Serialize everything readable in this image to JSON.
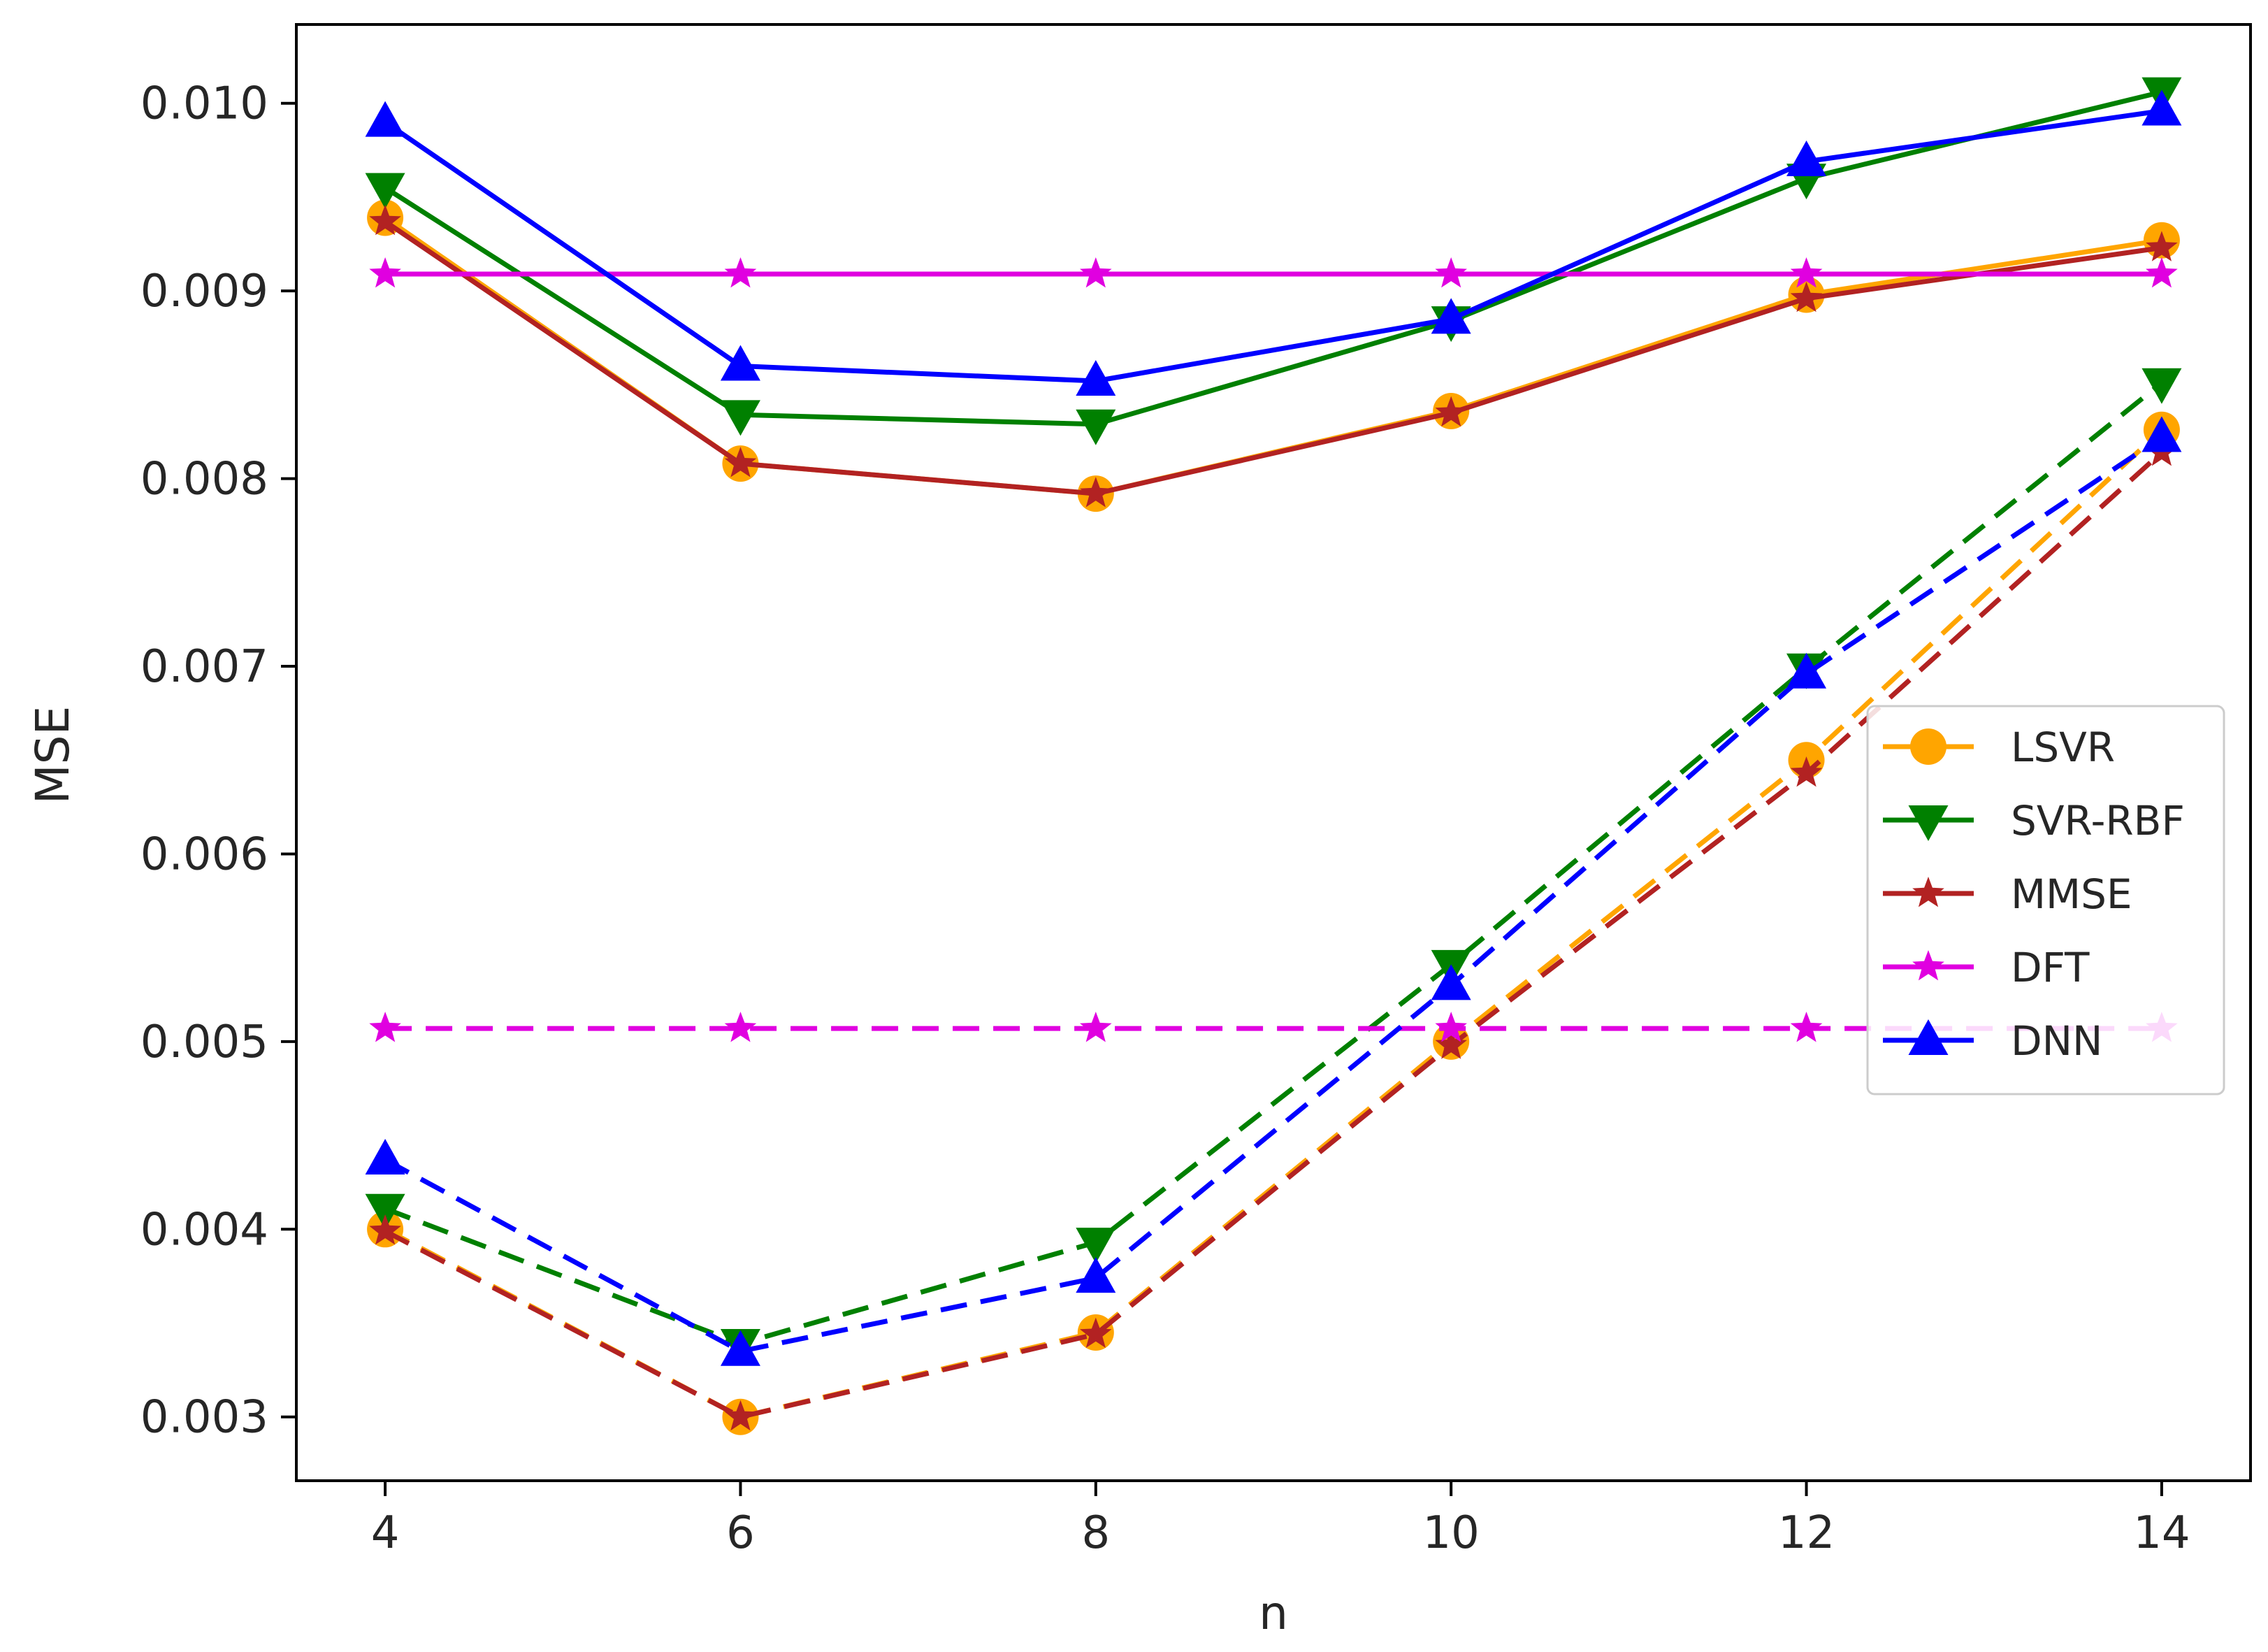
{
  "chart_data": {
    "type": "line",
    "title": "",
    "xlabel": "n",
    "ylabel": "MSE",
    "x": [
      4,
      6,
      8,
      10,
      12,
      14
    ],
    "xticks": [
      4,
      6,
      8,
      10,
      12,
      14
    ],
    "xtick_labels": [
      "4",
      "6",
      "8",
      "10",
      "12",
      "14"
    ],
    "yticks": [
      0.003,
      0.004,
      0.005,
      0.006,
      0.007,
      0.008,
      0.009,
      0.01
    ],
    "ytick_labels": [
      "0.003",
      "0.004",
      "0.005",
      "0.006",
      "0.007",
      "0.008",
      "0.009",
      "0.010"
    ],
    "xlim": [
      3.5,
      14.5
    ],
    "ylim": [
      0.00266,
      0.01042
    ],
    "grid": false,
    "legend_position": "center-right",
    "legend": [
      "LSVR",
      "SVR-RBF",
      "MMSE",
      "DFT",
      "DNN"
    ],
    "series": [
      {
        "name": "LSVR",
        "group": "solid",
        "color": "#ffa500",
        "marker": "circle",
        "dash": "solid",
        "values": [
          0.00939,
          0.00808,
          0.00792,
          0.00836,
          0.00898,
          0.00927
        ]
      },
      {
        "name": "SVR-RBF",
        "group": "solid",
        "color": "#008000",
        "marker": "triangle-down",
        "dash": "solid",
        "values": [
          0.00955,
          0.00834,
          0.00829,
          0.00884,
          0.0096,
          0.01006
        ]
      },
      {
        "name": "MMSE",
        "group": "solid",
        "color": "#b22222",
        "marker": "star",
        "dash": "solid",
        "values": [
          0.00937,
          0.00808,
          0.00792,
          0.00835,
          0.00896,
          0.00923
        ]
      },
      {
        "name": "DFT",
        "group": "solid",
        "color": "#e000e0",
        "marker": "star",
        "dash": "solid",
        "values": [
          0.00909,
          0.00909,
          0.00909,
          0.00909,
          0.00909,
          0.00909
        ]
      },
      {
        "name": "DNN",
        "group": "solid",
        "color": "#0000ff",
        "marker": "triangle-up",
        "dash": "solid",
        "values": [
          0.0099,
          0.0086,
          0.00852,
          0.00885,
          0.00969,
          0.00996
        ]
      },
      {
        "name": "LSVR",
        "group": "dashed",
        "color": "#ffa500",
        "marker": "circle",
        "dash": "dashed",
        "values": [
          0.004,
          0.003,
          0.00345,
          0.005,
          0.0065,
          0.00826
        ]
      },
      {
        "name": "SVR-RBF",
        "group": "dashed",
        "color": "#008000",
        "marker": "triangle-down",
        "dash": "dashed",
        "values": [
          0.00411,
          0.00339,
          0.00393,
          0.00541,
          0.00699,
          0.00851
        ]
      },
      {
        "name": "MMSE",
        "group": "dashed",
        "color": "#b22222",
        "marker": "star",
        "dash": "dashed",
        "values": [
          0.00399,
          0.003,
          0.00344,
          0.00498,
          0.00643,
          0.00814
        ]
      },
      {
        "name": "DFT",
        "group": "dashed",
        "color": "#e000e0",
        "marker": "star",
        "dash": "dashed",
        "values": [
          0.00507,
          0.00507,
          0.00507,
          0.00507,
          0.00507,
          0.00507
        ]
      },
      {
        "name": "DNN",
        "group": "dashed",
        "color": "#0000ff",
        "marker": "triangle-up",
        "dash": "dashed",
        "values": [
          0.00437,
          0.00335,
          0.00374,
          0.0053,
          0.00696,
          0.00822
        ]
      }
    ]
  }
}
